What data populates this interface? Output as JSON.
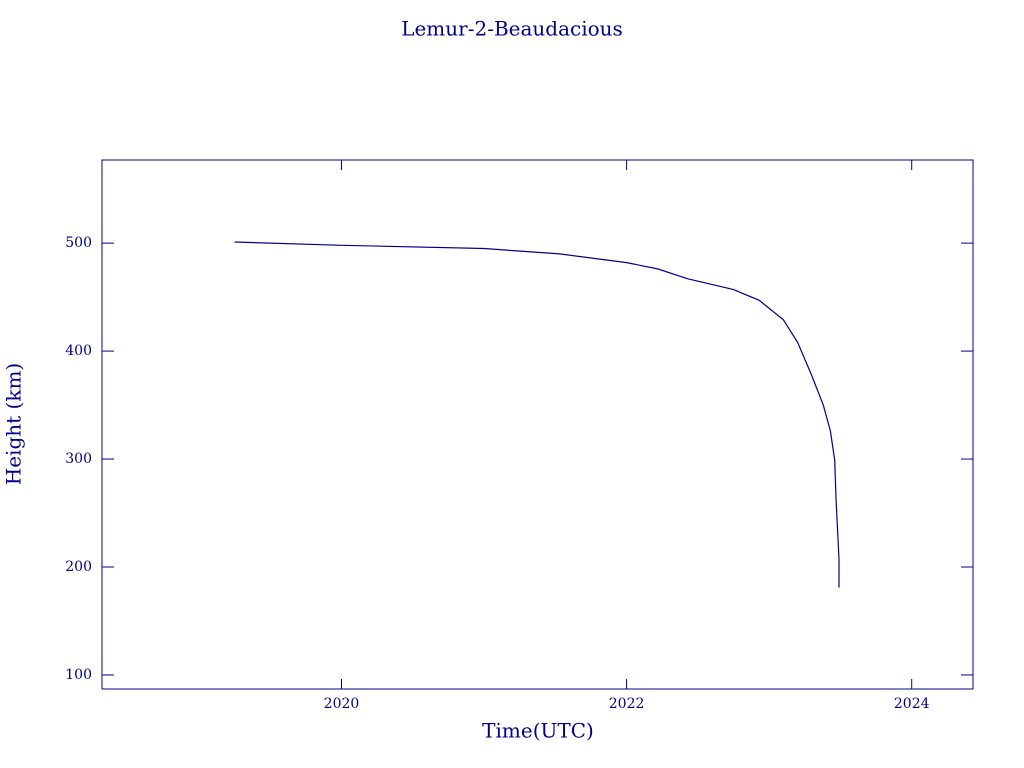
{
  "chart_data": {
    "type": "line",
    "title": "Lemur-2-Beaudacious",
    "x_label": "Time(UTC)",
    "y_label": "Height (km)",
    "color": "#00008b",
    "x": [
      2019.25,
      2020.0,
      2021.0,
      2021.53,
      2022.0,
      2022.22,
      2022.43,
      2022.75,
      2022.93,
      2023.1,
      2023.2,
      2023.3,
      2023.38,
      2023.43,
      2023.46,
      2023.47,
      2023.49,
      2023.49
    ],
    "values": [
      501,
      498,
      495,
      490,
      482,
      476,
      467,
      457,
      447,
      429,
      408,
      377,
      350,
      326,
      299,
      262,
      207,
      181
    ],
    "xlim": [
      2018.32,
      2024.43
    ],
    "ylim": [
      87,
      577
    ],
    "xticks": [
      2020,
      2022,
      2024
    ],
    "yticks": [
      100,
      200,
      300,
      400,
      500
    ]
  }
}
